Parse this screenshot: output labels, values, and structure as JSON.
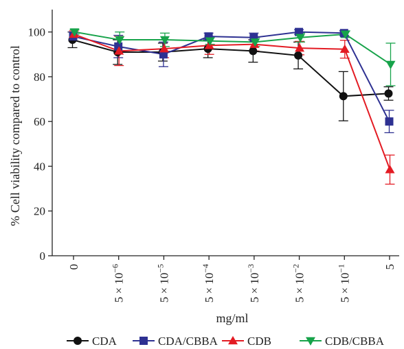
{
  "chart_data": {
    "type": "line",
    "title": "",
    "xlabel": "mg/ml",
    "ylabel": "% Cell viability compared to control",
    "categories": [
      {
        "id": "c0",
        "coef": "",
        "base": "",
        "exp": "",
        "plain": "0"
      },
      {
        "id": "c1",
        "coef": "5 × ",
        "base": "10",
        "exp": "−6",
        "plain": ""
      },
      {
        "id": "c2",
        "coef": "5 × ",
        "base": "10",
        "exp": "−5",
        "plain": ""
      },
      {
        "id": "c3",
        "coef": "5 × ",
        "base": "10",
        "exp": "−4",
        "plain": ""
      },
      {
        "id": "c4",
        "coef": "5 × ",
        "base": "10",
        "exp": "−3",
        "plain": ""
      },
      {
        "id": "c5",
        "coef": "5 × ",
        "base": "10",
        "exp": "−2",
        "plain": ""
      },
      {
        "id": "c6",
        "coef": "5 × ",
        "base": "10",
        "exp": "−1",
        "plain": ""
      },
      {
        "id": "c7",
        "coef": "",
        "base": "",
        "exp": "",
        "plain": "5"
      }
    ],
    "ylim": [
      0,
      110
    ],
    "yticks": [
      0,
      20,
      40,
      60,
      80,
      100
    ],
    "ytick_labels": [
      "0",
      "20",
      "40",
      "60",
      "80",
      "100"
    ],
    "grid": false,
    "legend_position": "bottom",
    "series": [
      {
        "name": "CDA",
        "color": "#111111",
        "marker": "circle",
        "values": [
          96.5,
          91,
          91,
          92.5,
          91.5,
          89.5,
          71.3,
          72.5
        ],
        "errors": [
          3.5,
          5.5,
          4,
          4,
          5,
          6,
          11,
          3
        ]
      },
      {
        "name": "CDA/CBBA",
        "color": "#2e3192",
        "marker": "square",
        "values": [
          98,
          93.5,
          90,
          98,
          97.5,
          100,
          99.5,
          60
        ],
        "errors": [
          2,
          5,
          5.5,
          1.5,
          2,
          1,
          1,
          5
        ]
      },
      {
        "name": "CDB",
        "color": "#e31b23",
        "marker": "triangle-up",
        "values": [
          99,
          91.5,
          92.5,
          94,
          94.5,
          92.8,
          92.3,
          38.5
        ],
        "errors": [
          1.5,
          6.5,
          4,
          4,
          3,
          3,
          4,
          6.5
        ]
      },
      {
        "name": "CDB/CBBA",
        "color": "#17a34a",
        "marker": "triangle-down",
        "values": [
          100,
          96.5,
          96.5,
          96,
          95.5,
          97.5,
          99,
          85.5
        ],
        "errors": [
          1,
          3.5,
          3,
          1.5,
          2,
          2,
          1.5,
          9.5
        ]
      }
    ]
  }
}
